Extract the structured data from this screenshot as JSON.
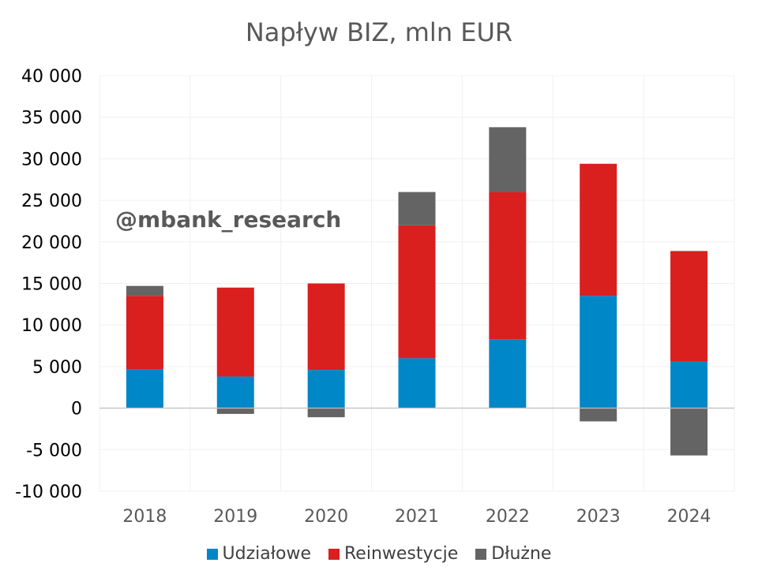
{
  "chart_data": {
    "type": "bar",
    "stacked": true,
    "title": "Napływ BIZ, mln EUR",
    "annotation": "@mbank_research",
    "categories": [
      "2018",
      "2019",
      "2020",
      "2021",
      "2022",
      "2023",
      "2024"
    ],
    "series": [
      {
        "name": "Udziałowe",
        "color": "#0087C8",
        "values": [
          4700,
          3800,
          4600,
          6000,
          8300,
          13500,
          5600
        ]
      },
      {
        "name": "Reinwestycje",
        "color": "#DA1F1F",
        "values": [
          8800,
          10700,
          10400,
          16000,
          17700,
          15900,
          13300
        ]
      },
      {
        "name": "Dłużne",
        "color": "#646464",
        "values": [
          1200,
          -700,
          -1100,
          4000,
          7800,
          -1600,
          -5700
        ]
      }
    ],
    "ylim": [
      -10000,
      40000
    ],
    "yticks": [
      "40 000",
      "35 000",
      "30 000",
      "25 000",
      "20 000",
      "15 000",
      "10 000",
      "5 000",
      "0",
      "-5 000",
      "-10 000"
    ],
    "ytick_values": [
      40000,
      35000,
      30000,
      25000,
      20000,
      15000,
      10000,
      5000,
      0,
      -5000,
      -10000
    ],
    "xlabel": "",
    "ylabel": "",
    "grid": true,
    "legend_position": "bottom"
  }
}
